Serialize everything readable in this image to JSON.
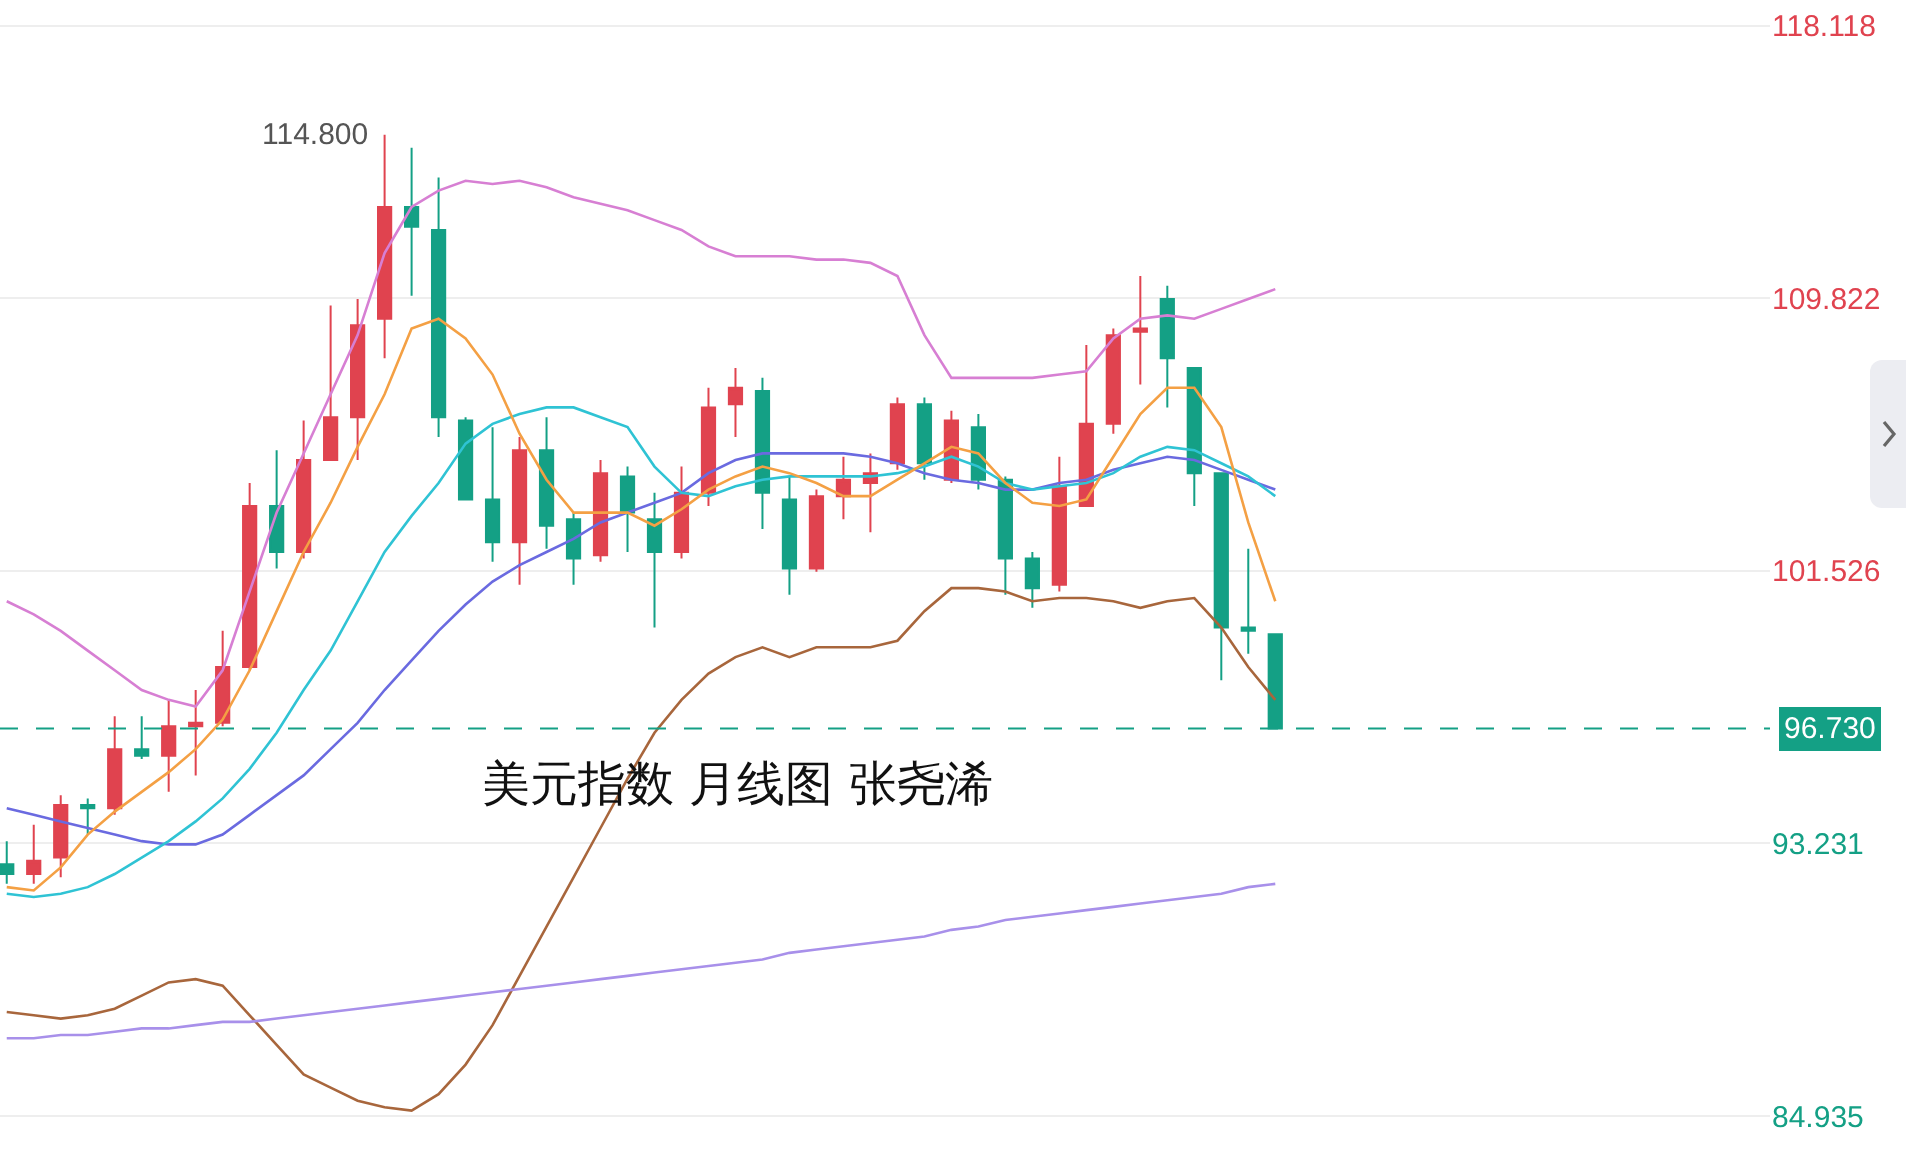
{
  "chart_data": {
    "type": "candlestick",
    "categories": [
      null,
      null,
      null,
      null,
      null,
      null,
      null,
      null,
      null,
      null,
      null,
      null,
      null,
      null,
      null,
      null,
      null,
      null,
      null,
      null,
      null,
      null,
      null,
      null,
      null,
      null,
      null,
      null,
      null,
      null,
      null,
      null,
      null,
      null,
      null,
      null,
      null,
      null,
      null,
      null,
      null,
      null,
      null,
      null,
      null,
      null,
      null,
      null
    ],
    "ohlc": [
      [
        92.6,
        93.3,
        92.0,
        92.3
      ],
      [
        92.3,
        93.8,
        92.0,
        92.7
      ],
      [
        92.8,
        94.7,
        92.2,
        94.4
      ],
      [
        94.4,
        94.6,
        93.5,
        94.3
      ],
      [
        94.3,
        97.1,
        94.1,
        96.1
      ],
      [
        96.1,
        97.1,
        95.8,
        95.9
      ],
      [
        95.9,
        97.6,
        94.8,
        96.8
      ],
      [
        96.8,
        97.9,
        95.3,
        96.9
      ],
      [
        96.9,
        99.7,
        96.8,
        98.6
      ],
      [
        98.6,
        104.2,
        98.5,
        103.5
      ],
      [
        103.5,
        105.2,
        101.6,
        102.1
      ],
      [
        102.1,
        106.1,
        101.9,
        104.9
      ],
      [
        104.9,
        109.6,
        104.9,
        106.2
      ],
      [
        106.2,
        109.8,
        104.9,
        109.0
      ],
      [
        109.2,
        114.8,
        108.0,
        112.6
      ],
      [
        112.6,
        114.4,
        109.9,
        112.0
      ],
      [
        111.9,
        113.5,
        105.6,
        106.2
      ],
      [
        106.1,
        106.2,
        103.7,
        103.7
      ],
      [
        103.7,
        105.9,
        101.8,
        102.4
      ],
      [
        102.4,
        105.6,
        101.1,
        105.2
      ],
      [
        105.2,
        106.2,
        102.2,
        102.9
      ],
      [
        103.1,
        103.3,
        101.1,
        101.9
      ],
      [
        102.0,
        104.9,
        101.8,
        104.5
      ],
      [
        104.4,
        104.7,
        102.1,
        103.3
      ],
      [
        103.1,
        103.9,
        99.8,
        102.1
      ],
      [
        102.1,
        104.7,
        101.9,
        103.9
      ],
      [
        103.9,
        107.1,
        103.5,
        106.5
      ],
      [
        106.6,
        107.7,
        105.6,
        107.1
      ],
      [
        107.0,
        107.4,
        102.8,
        103.9
      ],
      [
        103.7,
        104.4,
        100.8,
        101.6
      ],
      [
        101.6,
        104.0,
        101.5,
        103.8
      ],
      [
        103.8,
        105.0,
        103.1,
        104.3
      ],
      [
        104.2,
        105.1,
        102.7,
        104.5
      ],
      [
        104.8,
        106.8,
        104.6,
        106.6
      ],
      [
        106.6,
        106.8,
        104.3,
        104.8
      ],
      [
        104.3,
        106.4,
        104.2,
        106.1
      ],
      [
        105.9,
        106.3,
        104.0,
        104.3
      ],
      [
        104.3,
        104.4,
        100.8,
        101.9
      ],
      [
        101.9,
        102.1,
        100.4,
        101.0
      ],
      [
        101.1,
        105.0,
        100.9,
        104.1
      ],
      [
        103.5,
        108.4,
        103.5,
        106.0
      ],
      [
        106.0,
        108.9,
        105.7,
        108.7
      ],
      [
        108.8,
        110.5,
        107.2,
        108.9
      ],
      [
        109.8,
        110.2,
        106.5,
        108.0
      ],
      [
        107.7,
        107.7,
        103.5,
        104.5
      ],
      [
        104.5,
        104.5,
        98.2,
        99.8
      ],
      [
        99.8,
        102.2,
        99.0,
        99.7
      ],
      [
        99.6,
        99.6,
        96.73,
        96.73
      ]
    ],
    "colors": [
      "#14a085",
      "#e0434f",
      "#e0434f",
      "#14a085",
      "#e0434f",
      "#14a085",
      "#e0434f",
      "#e0434f",
      "#e0434f",
      "#e0434f",
      "#14a085",
      "#e0434f",
      "#e0434f",
      "#e0434f",
      "#e0434f",
      "#14a085",
      "#14a085",
      "#14a085",
      "#14a085",
      "#e0434f",
      "#14a085",
      "#14a085",
      "#e0434f",
      "#14a085",
      "#14a085",
      "#e0434f",
      "#e0434f",
      "#e0434f",
      "#14a085",
      "#14a085",
      "#e0434f",
      "#e0434f",
      "#e0434f",
      "#e0434f",
      "#14a085",
      "#e0434f",
      "#14a085",
      "#14a085",
      "#14a085",
      "#e0434f",
      "#e0434f",
      "#e0434f",
      "#e0434f",
      "#14a085",
      "#14a085",
      "#14a085",
      "#14a085",
      "#14a085"
    ],
    "series": [
      {
        "type": "line",
        "color": "#d77fd3",
        "values": [
          100.6,
          100.2,
          99.7,
          99.1,
          98.5,
          97.9,
          97.6,
          97.4,
          98.5,
          100.9,
          103.3,
          105.1,
          106.9,
          108.7,
          111.2,
          112.6,
          113.1,
          113.4,
          113.3,
          113.4,
          113.2,
          112.9,
          112.7,
          112.5,
          112.2,
          111.9,
          111.4,
          111.1,
          111.1,
          111.1,
          111.0,
          111.0,
          110.9,
          110.5,
          108.7,
          107.4,
          107.4,
          107.4,
          107.4,
          107.5,
          107.6,
          108.6,
          109.2,
          109.3,
          109.2,
          109.5,
          109.8,
          110.1
        ]
      },
      {
        "type": "line",
        "color": "#a8663c",
        "values": [
          88.1,
          88.0,
          87.9,
          88.0,
          88.2,
          88.6,
          89.0,
          89.1,
          88.9,
          88.0,
          87.1,
          86.2,
          85.8,
          85.4,
          85.2,
          85.1,
          85.6,
          86.5,
          87.7,
          89.2,
          90.7,
          92.2,
          93.7,
          95.2,
          96.6,
          97.6,
          98.4,
          98.9,
          99.2,
          98.9,
          99.2,
          99.2,
          99.2,
          99.4,
          100.3,
          101.0,
          101.0,
          100.9,
          100.6,
          100.7,
          100.7,
          100.6,
          100.4,
          100.6,
          100.7,
          99.8,
          98.6,
          97.6
        ]
      },
      {
        "type": "line",
        "color": "#a890ea",
        "values": [
          87.3,
          87.3,
          87.4,
          87.4,
          87.5,
          87.6,
          87.6,
          87.7,
          87.8,
          87.8,
          87.9,
          88.0,
          88.1,
          88.2,
          88.3,
          88.4,
          88.5,
          88.6,
          88.7,
          88.8,
          88.9,
          89.0,
          89.1,
          89.2,
          89.3,
          89.4,
          89.5,
          89.6,
          89.7,
          89.9,
          90.0,
          90.1,
          90.2,
          90.3,
          90.4,
          90.6,
          90.7,
          90.9,
          91.0,
          91.1,
          91.2,
          91.3,
          91.4,
          91.5,
          91.6,
          91.7,
          91.9,
          92.0
        ]
      },
      {
        "type": "line",
        "color": "#6a6ae0",
        "values": [
          94.3,
          94.1,
          93.9,
          93.7,
          93.5,
          93.3,
          93.2,
          93.2,
          93.5,
          94.1,
          94.7,
          95.3,
          96.1,
          96.9,
          97.9,
          98.8,
          99.7,
          100.5,
          101.2,
          101.7,
          102.1,
          102.5,
          103.0,
          103.3,
          103.6,
          103.9,
          104.5,
          104.9,
          105.1,
          105.1,
          105.1,
          105.1,
          105.0,
          104.8,
          104.5,
          104.3,
          104.2,
          104.0,
          104.0,
          104.2,
          104.3,
          104.6,
          104.8,
          105.0,
          104.9,
          104.6,
          104.3,
          104.0
        ]
      },
      {
        "type": "line",
        "color": "#2fc3d4",
        "values": [
          91.7,
          91.6,
          91.7,
          91.9,
          92.3,
          92.8,
          93.3,
          93.9,
          94.6,
          95.5,
          96.6,
          97.9,
          99.1,
          100.6,
          102.1,
          103.2,
          104.2,
          105.4,
          106.0,
          106.3,
          106.5,
          106.5,
          106.2,
          105.9,
          104.7,
          103.9,
          103.8,
          104.1,
          104.3,
          104.4,
          104.4,
          104.4,
          104.4,
          104.5,
          104.7,
          105.0,
          104.7,
          104.2,
          104.0,
          104.1,
          104.2,
          104.5,
          105.0,
          105.3,
          105.2,
          104.8,
          104.4,
          103.8
        ]
      },
      {
        "type": "line",
        "color": "#f4a044",
        "values": [
          91.9,
          91.8,
          92.5,
          93.5,
          94.2,
          94.8,
          95.4,
          96.1,
          97.0,
          98.5,
          100.3,
          102.1,
          103.6,
          105.3,
          106.9,
          108.9,
          109.2,
          108.6,
          107.5,
          105.7,
          104.3,
          103.3,
          103.3,
          103.3,
          102.9,
          103.4,
          104.0,
          104.4,
          104.7,
          104.5,
          104.2,
          103.8,
          103.8,
          104.3,
          104.8,
          105.3,
          105.1,
          104.2,
          103.6,
          103.5,
          103.7,
          105.0,
          106.3,
          107.1,
          107.1,
          105.9,
          103.0,
          100.6
        ]
      }
    ],
    "ylim": [
      83.9,
      118.9
    ],
    "yticks": [
      84.935,
      93.231,
      101.526,
      109.822,
      118.118
    ],
    "ref_lines": [
      {
        "axis": "y",
        "value": 96.73,
        "label": "96.730",
        "color": "#14a085",
        "line_style": "dashed"
      }
    ],
    "annotations": [
      "114.800",
      "美元指数 月线图 张尧浠"
    ],
    "grid": "y"
  }
}
